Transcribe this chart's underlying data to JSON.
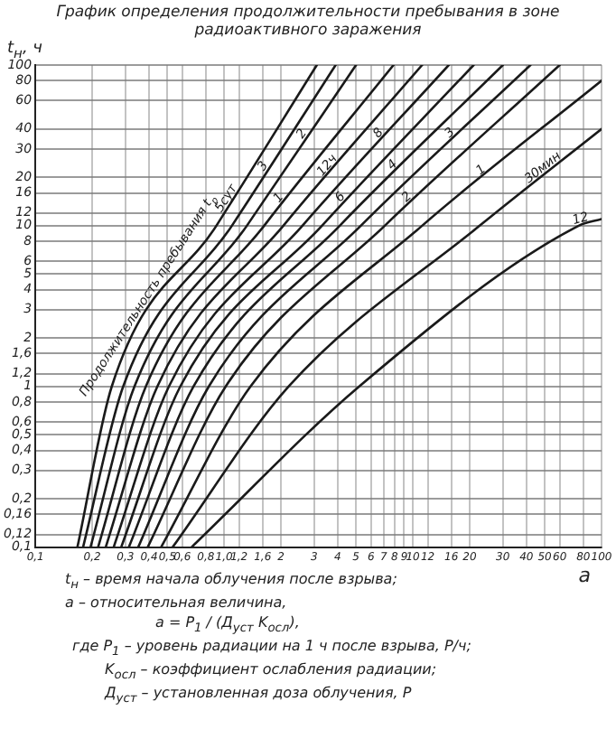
{
  "chart_data": {
    "type": "line",
    "title": "График определения продолжительности пребывания в зоне радиоактивного заражения",
    "ylabel": "t$_{н}$, ч",
    "xlabel": "a",
    "legend_title": "Продолжительность пребывания t$_{р}$",
    "log": "xy",
    "grid": true,
    "legend": false,
    "marker": "none",
    "line_style": "solid",
    "xlim": [
      0.1,
      100
    ],
    "ylim": [
      0.1,
      100
    ],
    "xticks": [
      {
        "value": 0.1,
        "label": "0,1"
      },
      {
        "value": 0.2,
        "label": "0,2"
      },
      {
        "value": 0.3,
        "label": "0,3"
      },
      {
        "value": 0.4,
        "label": "0,4"
      },
      {
        "value": 0.5,
        "label": "0,5"
      },
      {
        "value": 0.6,
        "label": "0,6"
      },
      {
        "value": 0.8,
        "label": "0,8"
      },
      {
        "value": 1,
        "label": "1,0"
      },
      {
        "value": 1.2,
        "label": "1,2"
      },
      {
        "value": 1.6,
        "label": "1,6"
      },
      2,
      3,
      4,
      5,
      6,
      7,
      8,
      9,
      10,
      12,
      16,
      20,
      30,
      40,
      50,
      60,
      80,
      100
    ],
    "yticks": [
      {
        "value": 0.1,
        "label": "0,1"
      },
      {
        "value": 0.12,
        "label": "0,12"
      },
      {
        "value": 0.16,
        "label": "0,16"
      },
      {
        "value": 0.2,
        "label": "0,2"
      },
      {
        "value": 0.3,
        "label": "0,3"
      },
      {
        "value": 0.4,
        "label": "0,4"
      },
      {
        "value": 0.5,
        "label": "0,5"
      },
      {
        "value": 0.6,
        "label": "0,6"
      },
      {
        "value": 0.8,
        "label": "0,8"
      },
      1,
      {
        "value": 1.2,
        "label": "1,2"
      },
      {
        "value": 1.6,
        "label": "1,6"
      },
      2,
      3,
      4,
      5,
      6,
      8,
      10,
      12,
      16,
      20,
      30,
      40,
      60,
      80,
      100
    ],
    "series": [
      {
        "name": "5сут",
        "color": "#1a1a1a",
        "x": [
          0.167,
          0.254,
          0.91,
          3.1
        ],
        "values": [
          0.1,
          1,
          10,
          100
        ]
      },
      {
        "name": "3",
        "color": "#1a1a1a",
        "x": [
          0.179,
          0.292,
          1.1,
          3.9
        ],
        "values": [
          0.1,
          1,
          10,
          100
        ]
      },
      {
        "name": "2",
        "color": "#1a1a1a",
        "x": [
          0.196,
          0.335,
          1.32,
          5.0
        ],
        "values": [
          0.1,
          1,
          10,
          100
        ]
      },
      {
        "name": "1",
        "color": "#1a1a1a",
        "x": [
          0.215,
          0.385,
          1.63,
          7.9
        ],
        "values": [
          0.1,
          1,
          10,
          100
        ]
      },
      {
        "name": "12ч",
        "color": "#1a1a1a",
        "x": [
          0.236,
          0.443,
          2.06,
          11.2
        ],
        "values": [
          0.1,
          1,
          10,
          100
        ]
      },
      {
        "name": "8",
        "color": "#1a1a1a",
        "x": [
          0.26,
          0.51,
          2.6,
          15.5
        ],
        "values": [
          0.1,
          1,
          10,
          100
        ]
      },
      {
        "name": "6",
        "color": "#1a1a1a",
        "x": [
          0.285,
          0.586,
          3.3,
          21
        ],
        "values": [
          0.1,
          1,
          10,
          100
        ]
      },
      {
        "name": "4",
        "color": "#1a1a1a",
        "x": [
          0.313,
          0.689,
          4.1,
          30
        ],
        "values": [
          0.1,
          1,
          10,
          100
        ]
      },
      {
        "name": "3",
        "color": "#1a1a1a",
        "x": [
          0.351,
          0.83,
          5.3,
          42
        ],
        "values": [
          0.1,
          1,
          10,
          100
        ]
      },
      {
        "name": "2",
        "color": "#1a1a1a",
        "x": [
          0.394,
          1.02,
          7.1,
          60
        ],
        "values": [
          0.1,
          1,
          10,
          100
        ]
      },
      {
        "name": "1",
        "color": "#1a1a1a",
        "x": [
          0.464,
          1.38,
          11.2,
          100
        ],
        "values": [
          0.1,
          1,
          10,
          80
        ]
      },
      {
        "name": "30мин",
        "color": "#1a1a1a",
        "x": [
          0.534,
          2.2,
          22.6,
          100
        ],
        "values": [
          0.1,
          1,
          10,
          40
        ]
      },
      {
        "name": "12",
        "color": "#1a1a1a",
        "x": [
          0.673,
          5.2,
          75.7,
          100
        ],
        "values": [
          0.1,
          1,
          10,
          11
        ]
      }
    ],
    "annotations": [
      "t$_{н}$ – время начала облучения после взрыва;",
      "a – относительная величина,",
      "a = P$_{1}$ / (Д$_{уст}$ K$_{осл}$),",
      "где P$_{1}$ – уровень радиации на 1 ч после взрыва, Р/ч;",
      "K$_{осл}$ – коэффициент ослабления радиации;",
      "Д$_{уст}$ – установленная доза облучения, Р"
    ]
  }
}
